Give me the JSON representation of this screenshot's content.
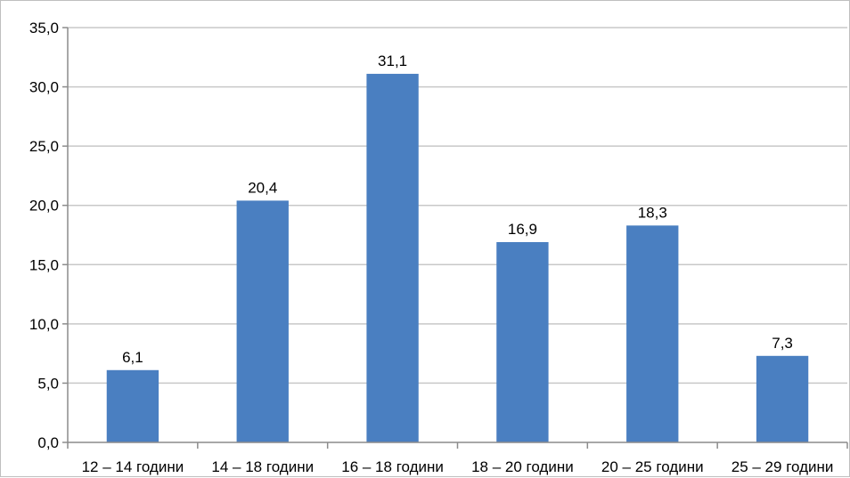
{
  "chart_data": {
    "type": "bar",
    "categories": [
      "12 – 14 години",
      "14 – 18 години",
      "16 – 18 години",
      "18 – 20 години",
      "20 – 25 години",
      "25 – 29 години"
    ],
    "values": [
      6.1,
      20.4,
      31.1,
      16.9,
      18.3,
      7.3
    ],
    "value_labels": [
      "6,1",
      "20,4",
      "31,1",
      "16,9",
      "18,3",
      "7,3"
    ],
    "y_ticks": [
      "0,0",
      "5,0",
      "10,0",
      "15,0",
      "20,0",
      "25,0",
      "30,0",
      "35,0"
    ],
    "ylim": [
      0,
      35
    ],
    "y_tick_step": 5,
    "grid": true,
    "legend": "none",
    "title": "",
    "xlabel": "",
    "ylabel": "",
    "colors": {
      "bar": "#4a7fc1",
      "gridline": "#c8c8c8",
      "axis": "#8c8c8c"
    }
  }
}
